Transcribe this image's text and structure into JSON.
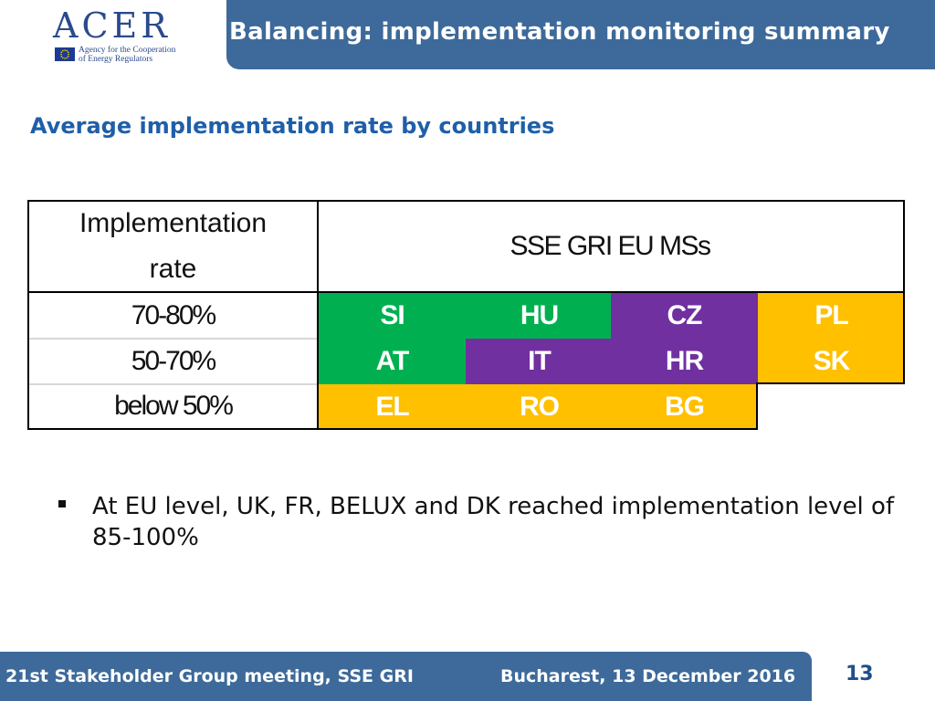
{
  "logo": {
    "wordmark": "ACER",
    "subtitle_line1": "Agency for the Cooperation",
    "subtitle_line2": "of Energy Regulators"
  },
  "header": {
    "title": "Balancing: implementation monitoring summary"
  },
  "section": {
    "title": "Average implementation rate by countries"
  },
  "table": {
    "header_left_line1": "Implementation",
    "header_left_line2": "rate",
    "header_right": "SSE GRI EU MSs",
    "rows": [
      {
        "rate": "70-80%",
        "countries": [
          "SI",
          "HU",
          "CZ",
          "PL"
        ]
      },
      {
        "rate": "50-70%",
        "countries": [
          "AT",
          "IT",
          "HR",
          "SK"
        ]
      },
      {
        "rate": "below 50%",
        "countries": [
          "EL",
          "RO",
          "BG"
        ]
      }
    ]
  },
  "colors": {
    "green": "#00b050",
    "purple": "#7030a0",
    "gold": "#ffc000",
    "header_blue": "#3d6a9a",
    "title_blue": "#1f5fa8"
  },
  "bullet": {
    "text": "At EU level, UK, FR, BELUX and DK reached implementation level of 85-100%"
  },
  "footer": {
    "left": "21st Stakeholder Group meeting, SSE GRI",
    "right": "Bucharest, 13 December 2016",
    "page": "13"
  }
}
